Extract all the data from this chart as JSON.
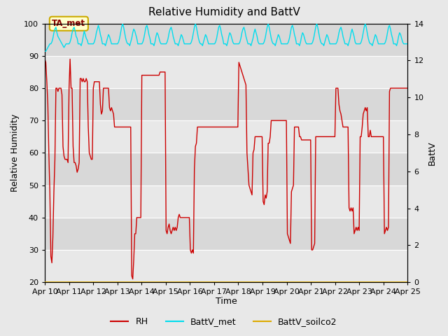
{
  "title": "Relative Humidity and BattV",
  "xlabel": "Time",
  "ylabel_left": "Relative Humidity",
  "ylabel_right": "BattV",
  "ylim_left": [
    20,
    100
  ],
  "ylim_right": [
    0,
    14
  ],
  "yticks_left": [
    20,
    30,
    40,
    50,
    60,
    70,
    80,
    90,
    100
  ],
  "yticks_right": [
    0,
    2,
    4,
    6,
    8,
    10,
    12,
    14
  ],
  "xtick_labels": [
    "Apr 10",
    "Apr 11",
    "Apr 12",
    "Apr 13",
    "Apr 14",
    "Apr 15",
    "Apr 16",
    "Apr 17",
    "Apr 18",
    "Apr 19",
    "Apr 20",
    "Apr 21",
    "Apr 22",
    "Apr 23",
    "Apr 24",
    "Apr 25"
  ],
  "rh_color": "#cc0000",
  "battv_met_color": "#00ddee",
  "battv_soilco2_color": "#ddaa00",
  "annotation_text": "TA_met",
  "bg_color": "#e8e8e8",
  "plot_bg_color": "#d8d8d8",
  "grid_color": "#ffffff",
  "band_color": "#e8e8e8",
  "rh_data": [
    89,
    88,
    82,
    75,
    60,
    48,
    28,
    26,
    34,
    48,
    58,
    80,
    80,
    79,
    80,
    80,
    80,
    78,
    62,
    59,
    58,
    58,
    58,
    57,
    80,
    89,
    80,
    80,
    62,
    57,
    57,
    56,
    54,
    55,
    57,
    83,
    83,
    82,
    83,
    82,
    82,
    83,
    82,
    68,
    60,
    59,
    58,
    58,
    80,
    82,
    82,
    82,
    82,
    82,
    82,
    75,
    72,
    73,
    80,
    80,
    80,
    80,
    80,
    80,
    74,
    73,
    74,
    73,
    72,
    68,
    68,
    68,
    68,
    68,
    68,
    68,
    68,
    68,
    68,
    68,
    68,
    68,
    68,
    68,
    68,
    68,
    22,
    21,
    27,
    35,
    35,
    40,
    40,
    40,
    40,
    40,
    84,
    84,
    84,
    84,
    84,
    84,
    84,
    84,
    84,
    84,
    84,
    84,
    84,
    84,
    84,
    84,
    84,
    84,
    85,
    85,
    85,
    85,
    85,
    85,
    36,
    35,
    37,
    38,
    36,
    35,
    36,
    37,
    36,
    37,
    36,
    37,
    40,
    41,
    40,
    40,
    40,
    40,
    40,
    40,
    40,
    40,
    40,
    40,
    30,
    29,
    30,
    29,
    55,
    62,
    63,
    68,
    68,
    68,
    68,
    68,
    68,
    68,
    68,
    68,
    68,
    68,
    68,
    68,
    68,
    68,
    68,
    68,
    68,
    68,
    68,
    68,
    68,
    68,
    68,
    68,
    68,
    68,
    68,
    68,
    68,
    68,
    68,
    68,
    68,
    68,
    68,
    68,
    68,
    68,
    68,
    68,
    88,
    87,
    86,
    85,
    84,
    83,
    82,
    81,
    60,
    55,
    50,
    49,
    48,
    47,
    60,
    61,
    65,
    65,
    65,
    65,
    65,
    65,
    65,
    65,
    45,
    44,
    47,
    46,
    48,
    63,
    63,
    65,
    70,
    70,
    70,
    70,
    70,
    70,
    70,
    70,
    70,
    70,
    70,
    70,
    70,
    70,
    70,
    70,
    35,
    34,
    33,
    32,
    48,
    49,
    50,
    68,
    68,
    68,
    68,
    68,
    65,
    65,
    64,
    64,
    64,
    64,
    64,
    64,
    64,
    64,
    64,
    64,
    30,
    30,
    31,
    32,
    65,
    65,
    65,
    65,
    65,
    65,
    65,
    65,
    65,
    65,
    65,
    65,
    65,
    65,
    65,
    65,
    65,
    65,
    65,
    65,
    80,
    80,
    80,
    75,
    73,
    72,
    70,
    68,
    68,
    68,
    68,
    68,
    68,
    43,
    42,
    43,
    42,
    43,
    35,
    36,
    37,
    36,
    37,
    36,
    65,
    65,
    68,
    72,
    73,
    74,
    73,
    74,
    65,
    65,
    67,
    65,
    65,
    65,
    65,
    65,
    65,
    65,
    65,
    65,
    65,
    65,
    65,
    65,
    35,
    36,
    37,
    36,
    37,
    79,
    80,
    80,
    80,
    80,
    80,
    80,
    80,
    80,
    80,
    80,
    80,
    80,
    80,
    80,
    80,
    80,
    80,
    80
  ],
  "battv_met_data": [
    12.5,
    12.5,
    12.6,
    12.7,
    12.8,
    12.9,
    12.9,
    13.0,
    13.2,
    13.5,
    13.7,
    13.8,
    13.5,
    13.3,
    13.2,
    13.1,
    13.0,
    12.9,
    12.8,
    12.7,
    12.8,
    12.9,
    12.9,
    12.9,
    12.9,
    13.0,
    13.2,
    13.5,
    13.7,
    13.8,
    13.6,
    13.3,
    13.2,
    12.9,
    12.9,
    12.9,
    12.8,
    13.0,
    13.3,
    13.6,
    13.4,
    13.2,
    13.1,
    12.9,
    12.9,
    12.9,
    12.9,
    12.9,
    12.9,
    13.0,
    13.2,
    13.5,
    13.7,
    13.9,
    13.7,
    13.4,
    13.2,
    12.9,
    12.9,
    12.9,
    12.8,
    13.0,
    13.2,
    13.4,
    13.3,
    13.1,
    12.9,
    12.9,
    12.9,
    12.9,
    12.9,
    12.9,
    12.9,
    13.0,
    13.2,
    13.5,
    13.8,
    14.0,
    13.8,
    13.5,
    13.2,
    13.0,
    12.9,
    12.9,
    12.8,
    13.0,
    13.2,
    13.5,
    13.7,
    13.6,
    13.4,
    13.2,
    12.9,
    12.9,
    12.9,
    12.9,
    12.9,
    13.0,
    13.2,
    13.5,
    13.8,
    13.9,
    13.7,
    13.4,
    13.2,
    12.9,
    12.9,
    12.9,
    12.8,
    13.0,
    13.3,
    13.5,
    13.4,
    13.2,
    13.0,
    12.9,
    12.9,
    12.9,
    12.9,
    12.9,
    12.9,
    13.0,
    13.2,
    13.5,
    13.7,
    13.8,
    13.6,
    13.3,
    13.1,
    12.9,
    12.9,
    12.9,
    12.8,
    13.0,
    13.2,
    13.4,
    13.3,
    13.1,
    12.9,
    12.9,
    12.9,
    12.9,
    12.9,
    12.9,
    12.9,
    13.0,
    13.2,
    13.5,
    13.8,
    14.0,
    13.8,
    13.5,
    13.2,
    13.0,
    12.9,
    12.9,
    12.8,
    13.0,
    13.2,
    13.4,
    13.3,
    13.1,
    12.9,
    12.9,
    12.9,
    12.9,
    12.9,
    12.9,
    12.9,
    13.0,
    13.2,
    13.5,
    13.8,
    13.9,
    13.7,
    13.4,
    13.2,
    12.9,
    12.9,
    12.9,
    12.8,
    13.0,
    13.3,
    13.5,
    13.4,
    13.2,
    13.0,
    12.9,
    12.9,
    12.9,
    12.9,
    12.9,
    12.9,
    13.0,
    13.2,
    13.5,
    13.7,
    13.8,
    13.6,
    13.3,
    13.1,
    12.9,
    12.9,
    12.9,
    12.8,
    13.0,
    13.2,
    13.5,
    13.7,
    13.5,
    13.3,
    13.0,
    12.9,
    12.9,
    12.9,
    12.9,
    12.9,
    13.0,
    13.2,
    13.5,
    13.8,
    14.0,
    13.8,
    13.5,
    13.2,
    13.0,
    12.9,
    12.9,
    12.8,
    13.0,
    13.2,
    13.4,
    13.3,
    13.1,
    12.9,
    12.9,
    12.9,
    12.9,
    12.9,
    12.9,
    12.9,
    13.0,
    13.2,
    13.5,
    13.8,
    13.9,
    13.7,
    13.4,
    13.2,
    12.9,
    12.9,
    12.9,
    12.8,
    13.0,
    13.3,
    13.5,
    13.4,
    13.2,
    13.0,
    12.9,
    12.9,
    12.9,
    12.9,
    12.9,
    12.9,
    13.0,
    13.2,
    13.5,
    13.8,
    14.0,
    13.8,
    13.5,
    13.2,
    13.0,
    12.9,
    12.9,
    12.8,
    13.0,
    13.2,
    13.4,
    13.3,
    13.1,
    12.9,
    12.9,
    12.9,
    12.9,
    12.9,
    12.9,
    12.9,
    13.0,
    13.2,
    13.5,
    13.7,
    13.8,
    13.6,
    13.3,
    13.1,
    12.9,
    12.9,
    12.9,
    12.8,
    13.0,
    13.2,
    13.5,
    13.7,
    13.5,
    13.3,
    13.0,
    12.9,
    12.9,
    12.9,
    12.9,
    12.9,
    13.0,
    13.2,
    13.5,
    13.8,
    14.0,
    13.8,
    13.5,
    13.2,
    13.0,
    12.9,
    12.9,
    12.8,
    13.0,
    13.2,
    13.4,
    13.3,
    13.1,
    12.9,
    12.9,
    12.9,
    12.9,
    12.9,
    12.9,
    12.9,
    13.0,
    13.2,
    13.5,
    13.8,
    13.9,
    13.7,
    13.4,
    13.2,
    12.9,
    12.9,
    12.9,
    12.8,
    13.0,
    13.3,
    13.5,
    13.4,
    13.2,
    13.0,
    12.9,
    12.9,
    12.9,
    12.9,
    12.9
  ]
}
